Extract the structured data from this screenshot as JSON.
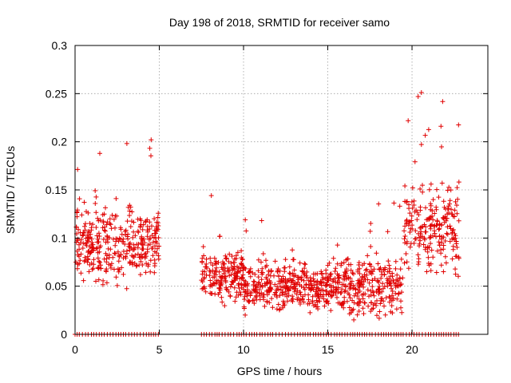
{
  "chart_data": {
    "type": "scatter",
    "title": "Day 198 of 2018, SRMTID for receiver samo",
    "xlabel": "GPS time / hours",
    "ylabel": "SRMTID / TECUs",
    "xlim": [
      0,
      24.5
    ],
    "ylim": [
      0,
      0.3
    ],
    "xticks": [
      0,
      5,
      10,
      15,
      20
    ],
    "xtick_labels": [
      "0",
      "5",
      "10",
      "15",
      "20"
    ],
    "yticks": [
      0,
      0.05,
      0.1,
      0.15,
      0.2,
      0.25,
      0.3
    ],
    "ytick_labels": [
      "0",
      "0.05",
      "0.1",
      "0.15",
      "0.2",
      "0.25",
      "0.3"
    ],
    "grid": true,
    "marker": "+",
    "series_color": "#e00000",
    "data_gap_hours": [
      5.0,
      7.5
    ],
    "segments": [
      {
        "name": "0-5h",
        "x_range": [
          0.0,
          5.0
        ],
        "y_min": 0.035,
        "y_center": 0.095,
        "y_peak": 0.205
      },
      {
        "name": "7.5-10h",
        "x_range": [
          7.5,
          10.0
        ],
        "y_min": 0.02,
        "y_center": 0.06,
        "y_peak": 0.15
      },
      {
        "name": "10-15h",
        "x_range": [
          10.0,
          15.0
        ],
        "y_min": 0.02,
        "y_center": 0.05,
        "y_peak": 0.125
      },
      {
        "name": "15-19.5h",
        "x_range": [
          15.0,
          19.5
        ],
        "y_min": 0.015,
        "y_center": 0.05,
        "y_peak": 0.155
      },
      {
        "name": "19.5-22.8h",
        "x_range": [
          19.5,
          22.8
        ],
        "y_min": 0.05,
        "y_center": 0.11,
        "y_peak": 0.255
      }
    ],
    "zero_values_present": true
  }
}
